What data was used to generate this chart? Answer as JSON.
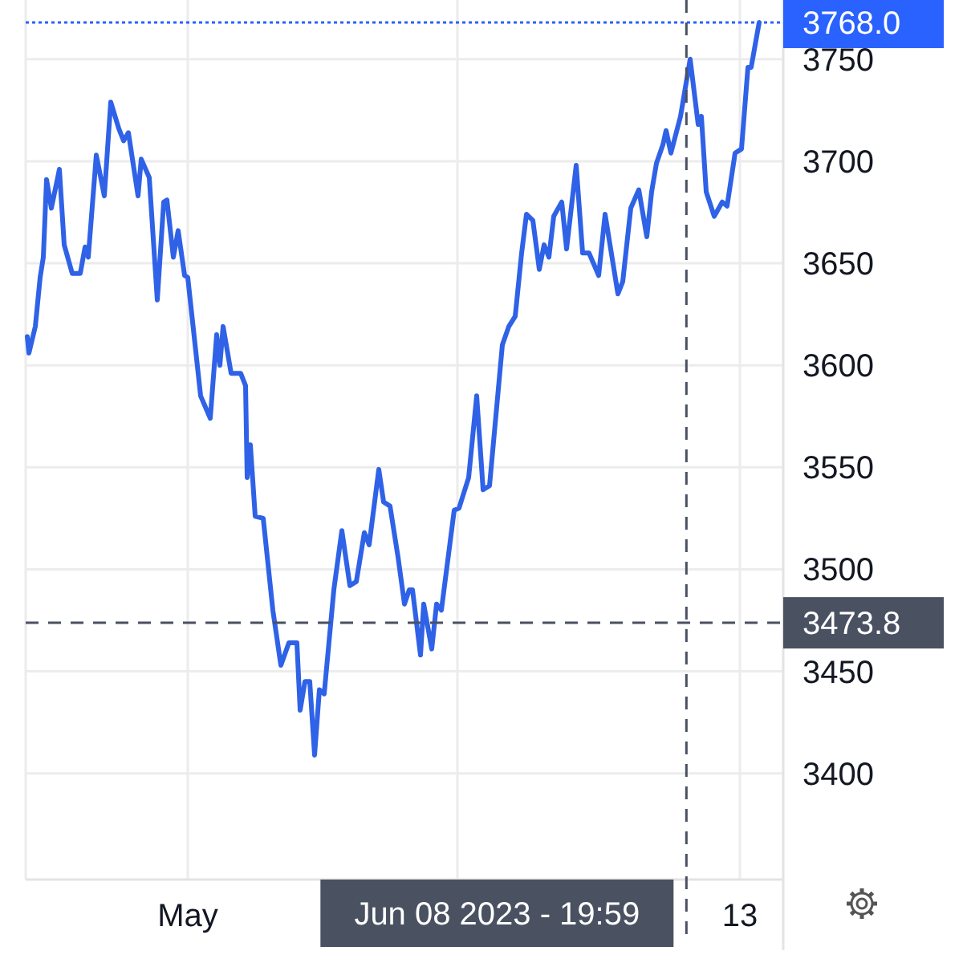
{
  "chart_data": {
    "type": "line",
    "x": [
      "2023-04-18T12:00",
      "2023-04-18T15:00",
      "2023-04-19T03:00",
      "2023-04-19T12:00",
      "2023-04-19T18:00",
      "2023-04-20T00:00",
      "2023-04-20T09:00",
      "2023-04-21T00:00",
      "2023-04-21T09:00",
      "2023-04-22T00:00",
      "2023-04-22T15:00",
      "2023-04-23T00:00",
      "2023-04-23T06:00",
      "2023-04-23T21:00",
      "2023-04-24T12:00",
      "2023-04-25T00:00",
      "2023-04-25T15:00",
      "2023-04-26T00:00",
      "2023-04-26T09:00",
      "2023-04-27T03:00",
      "2023-04-27T09:00",
      "2023-04-28T00:00",
      "2023-04-28T15:00",
      "2023-04-29T03:00",
      "2023-04-29T09:00",
      "2023-04-29T21:00",
      "2023-04-30T06:00",
      "2023-04-30T18:00",
      "2023-05-01T00:00",
      "2023-05-02T00:00",
      "2023-05-02T18:00",
      "2023-05-03T06:00",
      "2023-05-03T12:00",
      "2023-05-03T18:00",
      "2023-05-04T09:00",
      "2023-05-05T03:00",
      "2023-05-05T12:00",
      "2023-05-05T15:00",
      "2023-05-05T21:00",
      "2023-05-06T06:00",
      "2023-05-06T21:00",
      "2023-05-07T15:00",
      "2023-05-08T06:00",
      "2023-05-08T21:00",
      "2023-05-09T12:00",
      "2023-05-09T18:00",
      "2023-05-10T03:00",
      "2023-05-10T12:00",
      "2023-05-10T21:00",
      "2023-05-11T06:00",
      "2023-05-11T15:00",
      "2023-05-12T09:00",
      "2023-05-13T00:00",
      "2023-05-13T15:00",
      "2023-05-14T03:00",
      "2023-05-14T18:00",
      "2023-05-15T03:00",
      "2023-05-15T21:00",
      "2023-05-16T06:00",
      "2023-05-16T18:00",
      "2023-05-17T09:00",
      "2023-05-17T21:00",
      "2023-05-18T06:00",
      "2023-05-18T12:00",
      "2023-05-19T03:00",
      "2023-05-19T09:00",
      "2023-05-20T00:00",
      "2023-05-20T09:00",
      "2023-05-20T18:00",
      "2023-05-21T18:00",
      "2023-05-22T03:00",
      "2023-05-22T21:00",
      "2023-05-23T12:00",
      "2023-05-24T00:00",
      "2023-05-24T12:00",
      "2023-05-25T12:00",
      "2023-05-26T00:00",
      "2023-05-26T12:00",
      "2023-05-27T00:00",
      "2023-05-27T09:00",
      "2023-05-27T21:00",
      "2023-05-28T09:00",
      "2023-05-28T18:00",
      "2023-05-29T03:00",
      "2023-05-29T12:00",
      "2023-05-30T03:00",
      "2023-05-30T12:00",
      "2023-05-31T06:00",
      "2023-05-31T18:00",
      "2023-06-01T06:00",
      "2023-06-02T00:00",
      "2023-06-02T12:00",
      "2023-06-03T12:00",
      "2023-06-03T21:00",
      "2023-06-04T12:00",
      "2023-06-05T03:00",
      "2023-06-05T18:00",
      "2023-06-06T03:00",
      "2023-06-06T12:00",
      "2023-06-07T00:00",
      "2023-06-07T06:00",
      "2023-06-07T15:00",
      "2023-06-08T09:00",
      "2023-06-09T03:00",
      "2023-06-09T18:00",
      "2023-06-10T00:00",
      "2023-06-10T09:00",
      "2023-06-11T00:00",
      "2023-06-11T15:00",
      "2023-06-12T00:00",
      "2023-06-12T15:00",
      "2023-06-13T03:00",
      "2023-06-13T15:00",
      "2023-06-13T21:00",
      "2023-06-14T12:00"
    ],
    "series": [
      {
        "color": "#2f62e6",
        "values": [
          3614,
          3606,
          3619,
          3643,
          3653,
          3691,
          3677,
          3696,
          3659,
          3645,
          3645,
          3658,
          3653,
          3703,
          3683,
          3729,
          3716,
          3710,
          3714,
          3683,
          3701,
          3692,
          3632,
          3680,
          3681,
          3653,
          3666,
          3644,
          3643,
          3585,
          3574,
          3615,
          3600,
          3619,
          3596,
          3596,
          3590,
          3545,
          3561,
          3526,
          3525,
          3480,
          3453,
          3464,
          3464,
          3431,
          3445,
          3445,
          3409,
          3441,
          3439,
          3490,
          3519,
          3492,
          3494,
          3518,
          3512,
          3549,
          3533,
          3531,
          3506,
          3483,
          3490,
          3490,
          3458,
          3483,
          3461,
          3483,
          3480,
          3529,
          3530,
          3545,
          3585,
          3539,
          3541,
          3610,
          3619,
          3624,
          3655,
          3674,
          3671,
          3647,
          3659,
          3653,
          3673,
          3680,
          3657,
          3698,
          3655,
          3655,
          3644,
          3674,
          3635,
          3641,
          3677,
          3686,
          3663,
          3685,
          3699,
          3708,
          3715,
          3704,
          3722,
          3750,
          3718,
          3722,
          3685,
          3673,
          3680,
          3678,
          3704,
          3706,
          3746,
          3746,
          3768
        ]
      }
    ],
    "xlim": [
      "2023-04-18T09:00",
      "2023-06-16T09:00"
    ],
    "xticks": [
      {
        "value": "2023-05-01",
        "label": "May"
      },
      {
        "value": "2023-05-22",
        "label": null
      },
      {
        "value": "2023-06-13",
        "label": "13"
      }
    ],
    "ylim": [
      3348,
      3779
    ],
    "yticks": [
      3400,
      3450,
      3500,
      3550,
      3600,
      3650,
      3700,
      3750
    ],
    "grid": true,
    "line_style": "solid",
    "ref_lines": [
      {
        "axis": "y",
        "value": 3768.0,
        "label": "3768.0",
        "color": "#2962ff",
        "line_style": "dotted"
      },
      {
        "axis": "y",
        "value": 3473.8,
        "label": "3473.8",
        "color": "#4a5161",
        "line_style": "dashed"
      },
      {
        "axis": "x",
        "value": "2023-06-08T19:59",
        "label": "Jun 08 2023 - 19:59",
        "color": "#4a5161",
        "line_style": "dashed"
      }
    ]
  }
}
